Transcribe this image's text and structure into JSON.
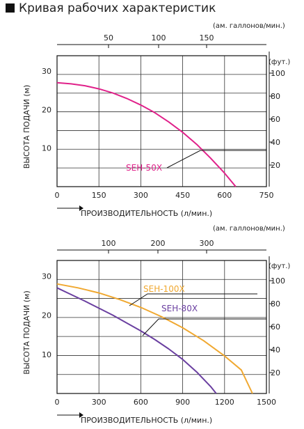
{
  "title": "Кривая рабочих характеристик",
  "chart_data": [
    {
      "type": "line",
      "xlabel": "ПРОИЗВОДИТЕЛЬНОСТЬ (л/мин.)",
      "ylabel": "ВЫСОТА ПОДАЧИ (м)",
      "top_axis_label": "(ам. галлонов/мин.)",
      "right_axis_label": "(фут.)",
      "xlim": [
        0,
        750
      ],
      "ylim": [
        0,
        34
      ],
      "x_ticks": [
        "0",
        "150",
        "300",
        "450",
        "600",
        "750"
      ],
      "y_ticks": [
        "10",
        "20",
        "30"
      ],
      "top_ticks": [
        "50",
        "100",
        "150"
      ],
      "right_ticks": [
        "20",
        "40",
        "60",
        "80",
        "100"
      ],
      "grid": true,
      "series": [
        {
          "name": "SEH-50X",
          "color": "#e0218a",
          "x": [
            0,
            50,
            100,
            150,
            200,
            250,
            300,
            350,
            400,
            450,
            500,
            550,
            600,
            640
          ],
          "y": [
            27,
            26.7,
            26.2,
            25.4,
            24.3,
            22.9,
            21.2,
            19.2,
            16.8,
            14.1,
            11.0,
            7.4,
            3.5,
            0
          ]
        }
      ]
    },
    {
      "type": "line",
      "xlabel": "ПРОИЗВОДИТЕЛЬНОСТЬ (л/мин.)",
      "ylabel": "ВЫСОТА ПОДАЧИ (м)",
      "top_axis_label": "(ам. галлонов/мин.)",
      "right_axis_label": "(фут.)",
      "xlim": [
        0,
        1500
      ],
      "ylim": [
        0,
        34
      ],
      "x_ticks": [
        "0",
        "300",
        "600",
        "900",
        "1200",
        "1500"
      ],
      "y_ticks": [
        "10",
        "20",
        "30"
      ],
      "top_ticks": [
        "100",
        "200",
        "300"
      ],
      "right_ticks": [
        "20",
        "40",
        "60",
        "80",
        "100"
      ],
      "grid": true,
      "series": [
        {
          "name": "SEH-100X",
          "color": "#f0a830",
          "x": [
            0,
            150,
            300,
            450,
            600,
            750,
            900,
            1050,
            1200,
            1320,
            1400
          ],
          "y": [
            28,
            27.0,
            25.7,
            24.0,
            22.0,
            19.6,
            16.8,
            13.5,
            9.6,
            6.0,
            0
          ]
        },
        {
          "name": "SEH-80X",
          "color": "#6a3fa0",
          "x": [
            0,
            100,
            200,
            300,
            400,
            500,
            600,
            700,
            800,
            900,
            1000,
            1100,
            1140
          ],
          "y": [
            27,
            25.3,
            23.6,
            21.8,
            20.0,
            18.0,
            16.0,
            13.8,
            11.4,
            8.7,
            5.5,
            1.8,
            0
          ]
        }
      ]
    }
  ]
}
